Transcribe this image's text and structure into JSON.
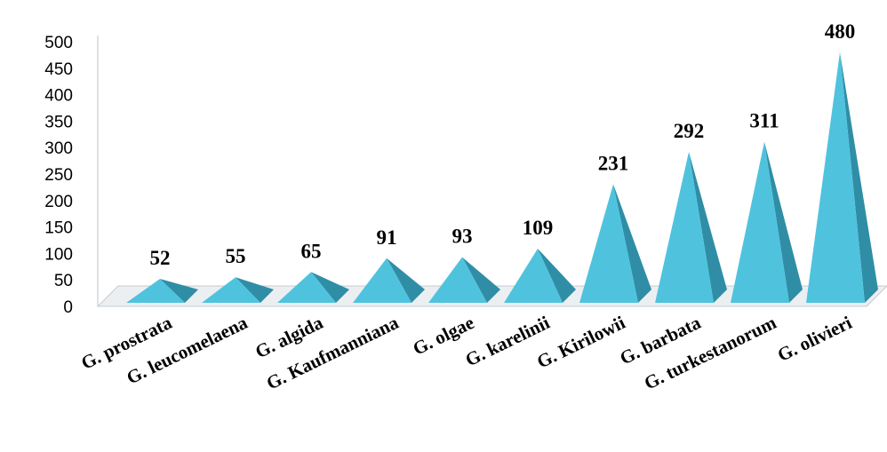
{
  "chart_data": {
    "type": "bar",
    "title": "",
    "xlabel": "",
    "ylabel": "",
    "categories": [
      "G. prostrata",
      "G. leucomelaena",
      "G. algida",
      "G. Kaufmanniana",
      "G. olgae",
      "G. karelinii",
      "G. Kirilowii",
      "G. barbata",
      "G. turkestanorum",
      "G. olivieri"
    ],
    "values": [
      52,
      55,
      65,
      91,
      93,
      109,
      231,
      292,
      311,
      480
    ],
    "ylim": [
      0,
      500
    ],
    "yticks": [
      "0",
      "50",
      "100",
      "150",
      "200",
      "250",
      "300",
      "350",
      "400",
      "450",
      "500"
    ],
    "grid": false,
    "data_labels": true,
    "colors": {
      "front": "#4fc3de",
      "side": "#2f8ea6",
      "floor": "#eceff1"
    }
  }
}
